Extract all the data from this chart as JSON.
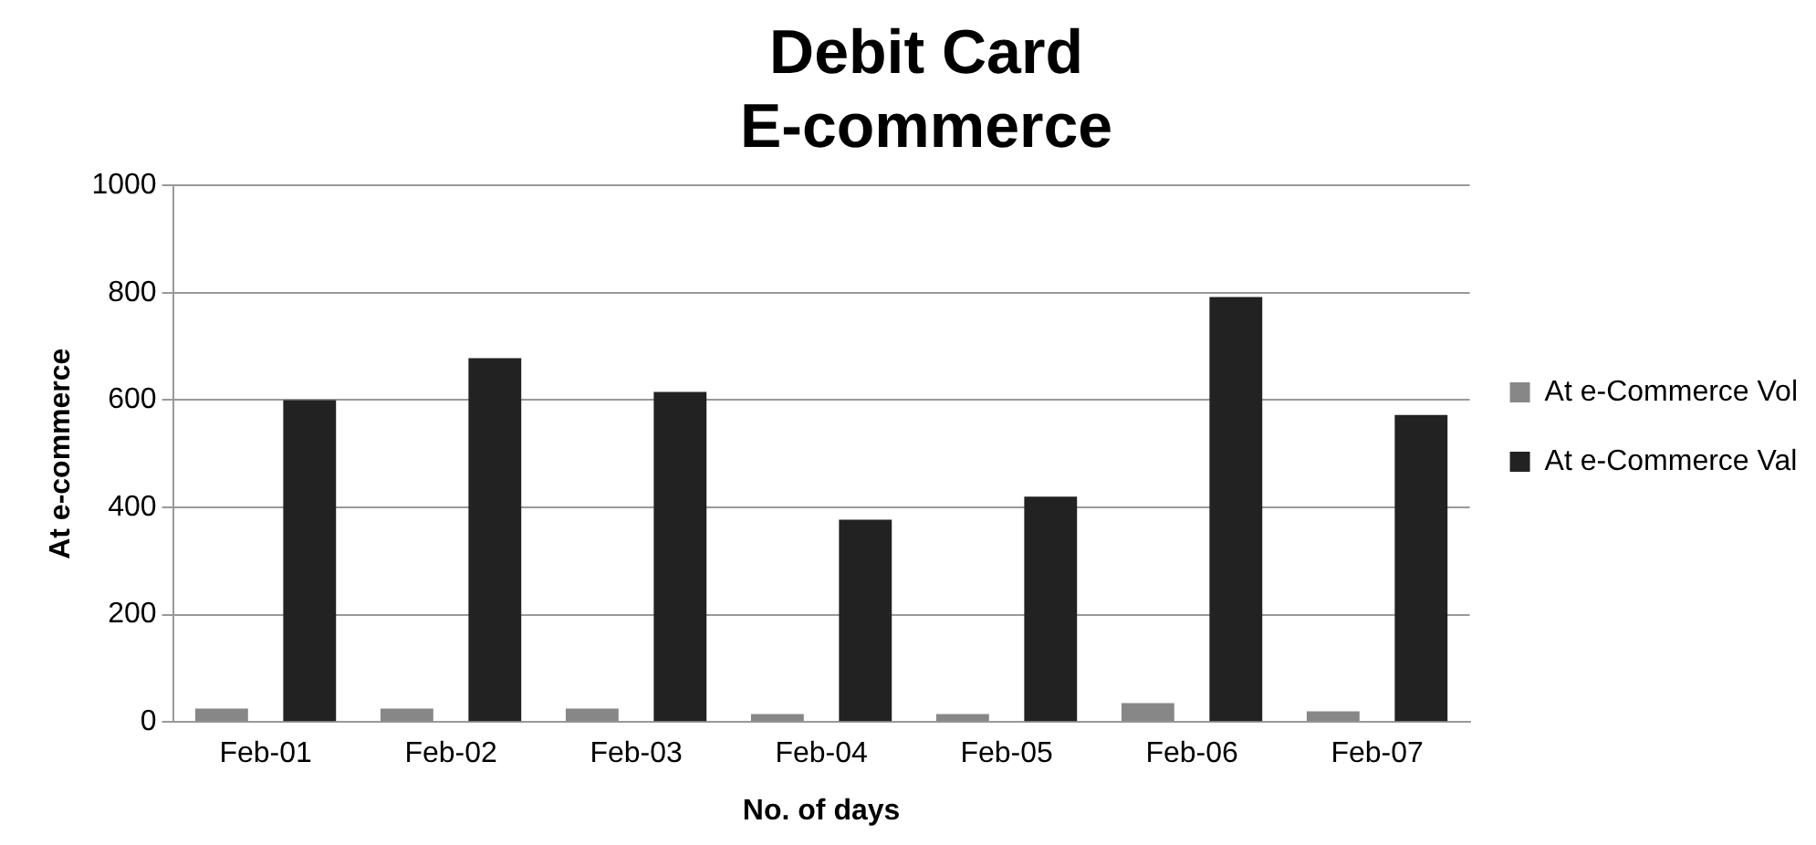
{
  "chart_data": {
    "type": "bar",
    "title": [
      "Debit Card",
      "E-commerce"
    ],
    "xlabel": "No. of days",
    "ylabel": "At e-commerce",
    "categories": [
      "Feb-01",
      "Feb-02",
      "Feb-03",
      "Feb-04",
      "Feb-05",
      "Feb-06",
      "Feb-07"
    ],
    "series": [
      {
        "name": "At e-Commerce Vol",
        "color": "#878787",
        "values": [
          25,
          25,
          25,
          15,
          15,
          35,
          20
        ]
      },
      {
        "name": "At e-Commerce Val",
        "color": "#222222",
        "values": [
          600,
          678,
          615,
          377,
          420,
          792,
          572
        ]
      }
    ],
    "ylim": [
      0,
      1000
    ],
    "yticks": [
      0,
      200,
      400,
      600,
      800,
      1000
    ],
    "grid": "y",
    "legend": "right"
  }
}
